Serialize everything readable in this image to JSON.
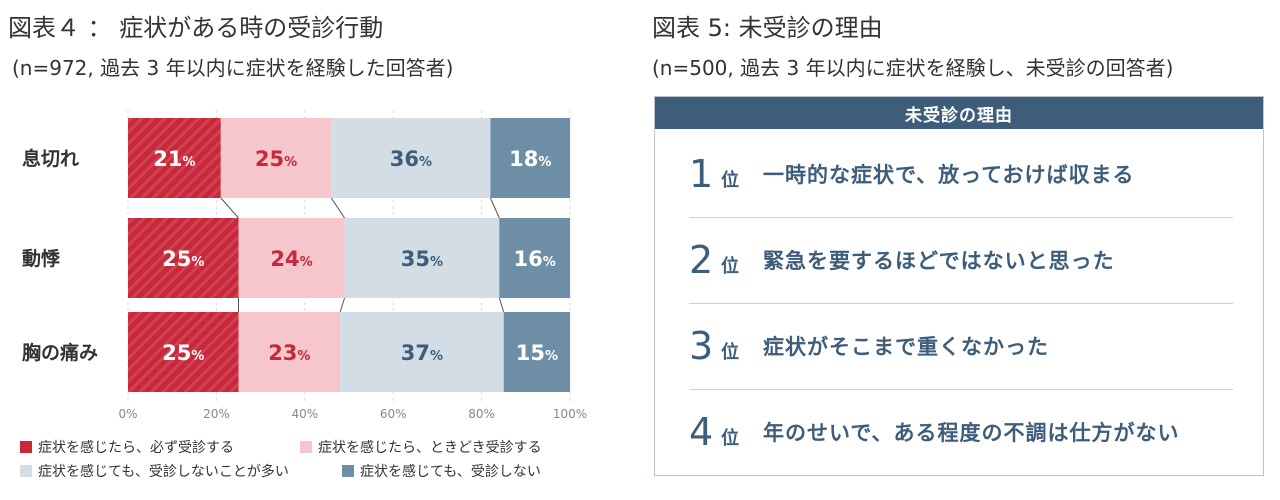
{
  "fig4": {
    "title": "図表４ ： 症状がある時の受診行動",
    "subtitle": "(n=972, 過去 3 年以内に症状を経験した回答者)"
  },
  "fig5": {
    "title": "図表 5: 未受診の理由",
    "subtitle": "(n=500, 過去 3 年以内に症状を経験し、未受診の回答者)",
    "box_header": "未受診の理由",
    "rank_unit": "位",
    "reasons": [
      {
        "rank": "1",
        "text": "一時的な症状で、放っておけば収まる"
      },
      {
        "rank": "2",
        "text": "緊急を要するほどではないと思った"
      },
      {
        "rank": "3",
        "text": "症状がそこまで重くなかった"
      },
      {
        "rank": "4",
        "text": "年のせいで、ある程度の不調は仕方がない"
      }
    ]
  },
  "chart_data": {
    "type": "bar",
    "orientation": "horizontal-stacked-100",
    "categories": [
      "息切れ",
      "動悸",
      "胸の痛み"
    ],
    "series": [
      {
        "name": "症状を感じたら、必ず受診する",
        "values": [
          21,
          25,
          25
        ],
        "color": "#c8283a",
        "label_color": "#ffffff"
      },
      {
        "name": "症状を感じたら、ときどき受診する",
        "values": [
          25,
          24,
          23
        ],
        "color": "#f5c6cc",
        "label_color": "#c8283a"
      },
      {
        "name": "症状を感じても、受診しないことが多い",
        "values": [
          36,
          35,
          37
        ],
        "color": "#d3dde6",
        "label_color": "#3d5d7a"
      },
      {
        "name": "症状を感じても、受診しない",
        "values": [
          18,
          16,
          15
        ],
        "color": "#6e8ea5",
        "label_color": "#ffffff"
      }
    ],
    "value_suffix": "%",
    "xticks": [
      "0%",
      "20%",
      "40%",
      "60%",
      "80%",
      "100%"
    ],
    "xlim": [
      0,
      100
    ],
    "grid": true,
    "legend_position": "bottom"
  }
}
